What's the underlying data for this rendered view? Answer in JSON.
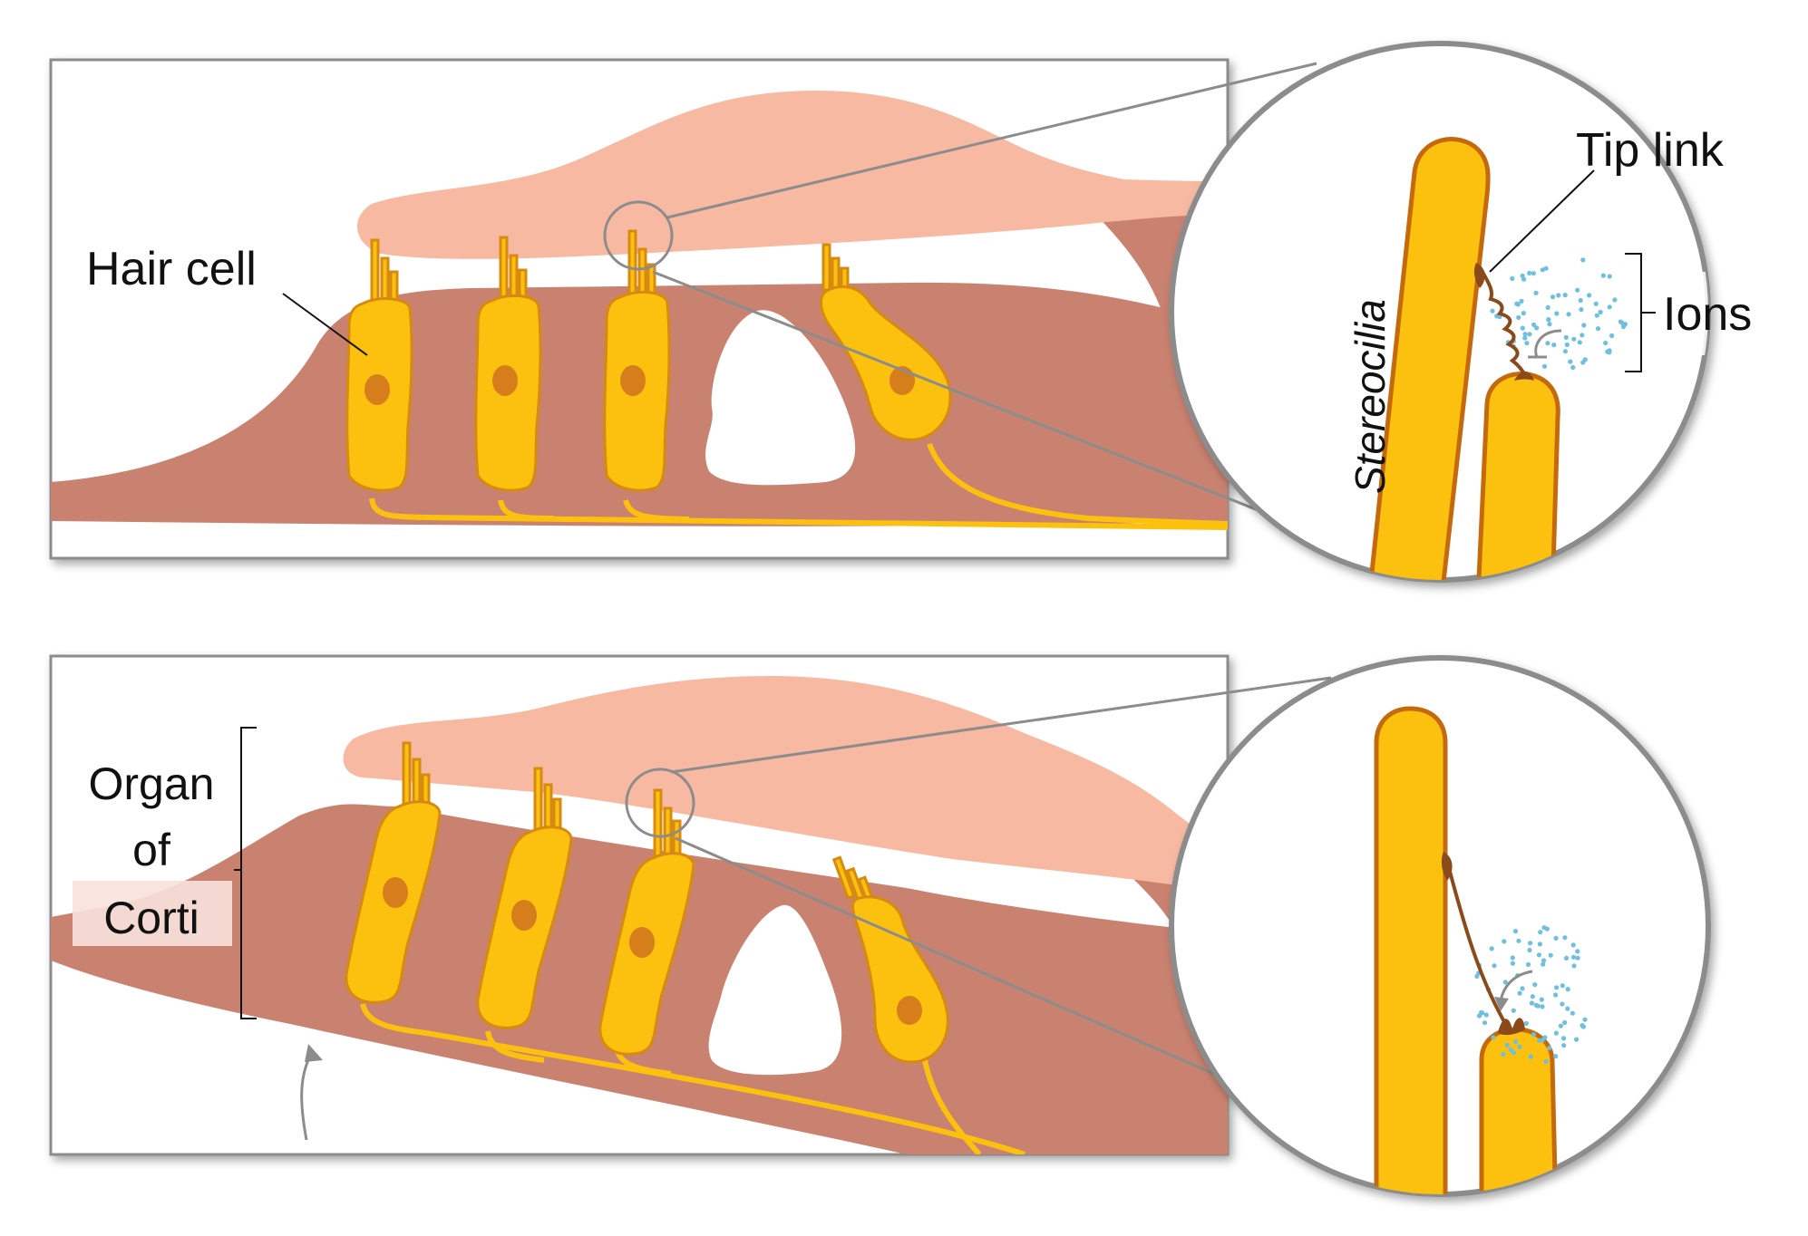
{
  "labels": {
    "hair_cell": "Hair cell",
    "tip_link": "Tip link",
    "stereocilia": "Stereocilia",
    "ions": "Ions",
    "organ_line1": "Organ",
    "organ_line2": "of",
    "organ_line3": "Corti"
  },
  "colors": {
    "tectorial_membrane": "#f7b9a2",
    "tissue": "#c98270",
    "hair_cell_fill": "#fcc10e",
    "hair_cell_outline": "#d68a10",
    "nucleus": "#d67e1c",
    "stereocilium_outline": "#c46a0c",
    "tip_link": "#8a4a1a",
    "ion_dots": "#6fbfe0",
    "frame": "#8c8c8c"
  }
}
